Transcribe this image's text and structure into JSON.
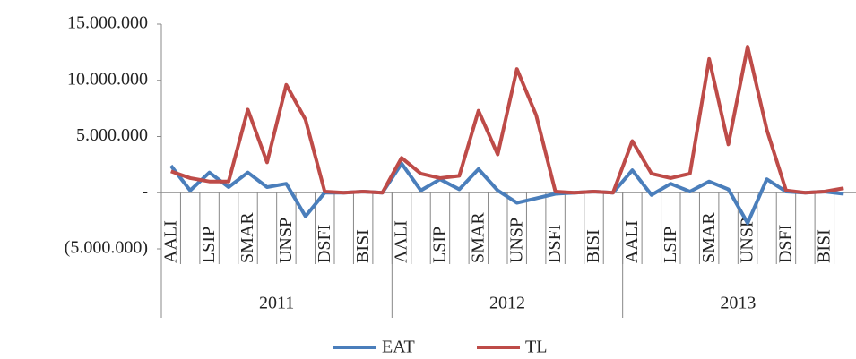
{
  "chart_data": {
    "type": "line",
    "categories": [
      "AALI",
      null,
      "LSIP",
      null,
      "SMAR",
      null,
      "UNSP",
      null,
      "DSFI",
      null,
      "BISI",
      null,
      "AALI",
      null,
      "LSIP",
      null,
      "SMAR",
      null,
      "UNSP",
      null,
      "DSFI",
      null,
      "BISI",
      null,
      "AALI",
      null,
      "LSIP",
      null,
      "SMAR",
      null,
      "UNSP",
      null,
      "DSFI",
      null,
      "BISI",
      null
    ],
    "category_groups": [
      "2011",
      "2012",
      "2013"
    ],
    "series": [
      {
        "name": "EAT",
        "color": "#4a7ebb",
        "values": [
          2400000,
          200000,
          1800000,
          500000,
          1800000,
          500000,
          800000,
          -2100000,
          0,
          0,
          100000,
          0,
          2600000,
          200000,
          1200000,
          300000,
          2100000,
          200000,
          -900000,
          -500000,
          -100000,
          0,
          100000,
          0,
          2000000,
          -200000,
          800000,
          100000,
          1000000,
          300000,
          -2700000,
          1200000,
          100000,
          0,
          100000,
          -100000
        ]
      },
      {
        "name": "TL",
        "color": "#be4b48",
        "values": [
          1900000,
          1300000,
          1000000,
          1000000,
          7400000,
          2700000,
          9600000,
          6500000,
          100000,
          0,
          100000,
          0,
          3100000,
          1700000,
          1300000,
          1500000,
          7300000,
          3400000,
          11000000,
          6900000,
          100000,
          0,
          100000,
          0,
          4600000,
          1700000,
          1300000,
          1700000,
          11900000,
          4300000,
          13000000,
          5600000,
          200000,
          0,
          100000,
          400000
        ]
      }
    ],
    "ylim": [
      -5000000,
      15000000
    ],
    "yticks": [
      {
        "value": -5000000,
        "label": "(5.000.000)"
      },
      {
        "value": 0,
        "label": "-"
      },
      {
        "value": 5000000,
        "label": "5.000.000"
      },
      {
        "value": 10000000,
        "label": "10.000.000"
      },
      {
        "value": 15000000,
        "label": "15.000.000"
      }
    ],
    "legend": "bottom"
  }
}
